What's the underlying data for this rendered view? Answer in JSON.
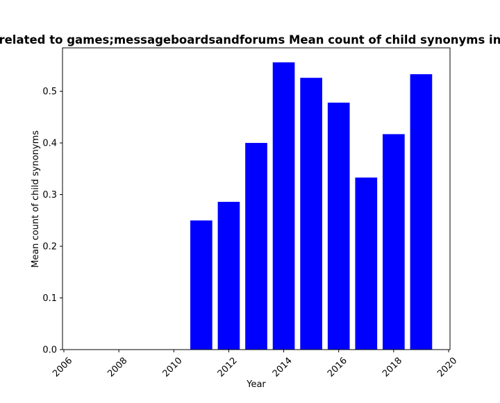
{
  "chart_data": {
    "type": "bar",
    "title": "Tags related to games;messageboardsandforums Mean count of child synonyms in period",
    "xlabel": "Year",
    "ylabel": "Mean count of child synonyms",
    "x": [
      2011,
      2012,
      2013,
      2014,
      2015,
      2016,
      2017,
      2018,
      2019
    ],
    "values": [
      0.25,
      0.286,
      0.4,
      0.556,
      0.526,
      0.478,
      0.333,
      0.417,
      0.533
    ],
    "xlim": [
      2005.95,
      2020.05
    ],
    "ylim": [
      0,
      0.584
    ],
    "xticks": [
      2006,
      2008,
      2010,
      2012,
      2014,
      2016,
      2018,
      2020
    ],
    "yticks": [
      0.0,
      0.1,
      0.2,
      0.3,
      0.4,
      0.5
    ],
    "ytick_labels": [
      "0.0",
      "0.1",
      "0.2",
      "0.3",
      "0.4",
      "0.5"
    ],
    "bar_color": "#0000ff",
    "grid": false,
    "legend": "none"
  }
}
